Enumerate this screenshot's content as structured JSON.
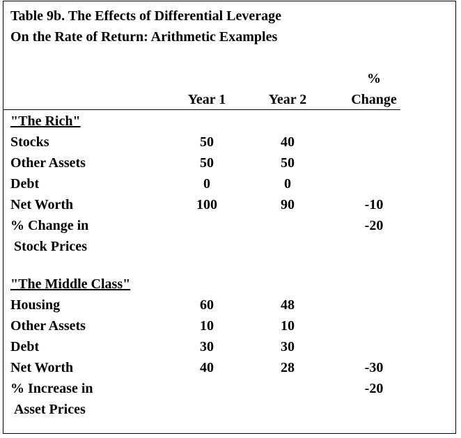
{
  "title": {
    "line1": "Table 9b. The Effects of Differential Leverage",
    "line2": "On the Rate of Return: Arithmetic Examples"
  },
  "headers": {
    "year1": "Year 1",
    "year2": "Year 2",
    "change_pct": "%",
    "change_word": "Change"
  },
  "rich": {
    "label": "\"The Rich\"",
    "rows": [
      {
        "label": "Stocks",
        "y1": "50",
        "y2": "40",
        "chg": ""
      },
      {
        "label": "Other Assets",
        "y1": "50",
        "y2": "50",
        "chg": ""
      },
      {
        "label": "Debt",
        "y1": "0",
        "y2": "0",
        "chg": ""
      },
      {
        "label": "Net Worth",
        "y1": "100",
        "y2": "90",
        "chg": "-10"
      }
    ],
    "pct_line1": "% Change in",
    "pct_line2": "Stock Prices",
    "pct_value": "-20"
  },
  "middle": {
    "label": "\"The Middle Class\"",
    "rows": [
      {
        "label": "Housing",
        "y1": "60",
        "y2": "48",
        "chg": ""
      },
      {
        "label": "Other Assets",
        "y1": "10",
        "y2": "10",
        "chg": ""
      },
      {
        "label": "Debt",
        "y1": "30",
        "y2": "30",
        "chg": ""
      },
      {
        "label": "Net Worth",
        "y1": "40",
        "y2": "28",
        "chg": "-30"
      }
    ],
    "pct_line1": "% Increase in",
    "pct_line2": "Asset Prices",
    "pct_value": "-20"
  }
}
